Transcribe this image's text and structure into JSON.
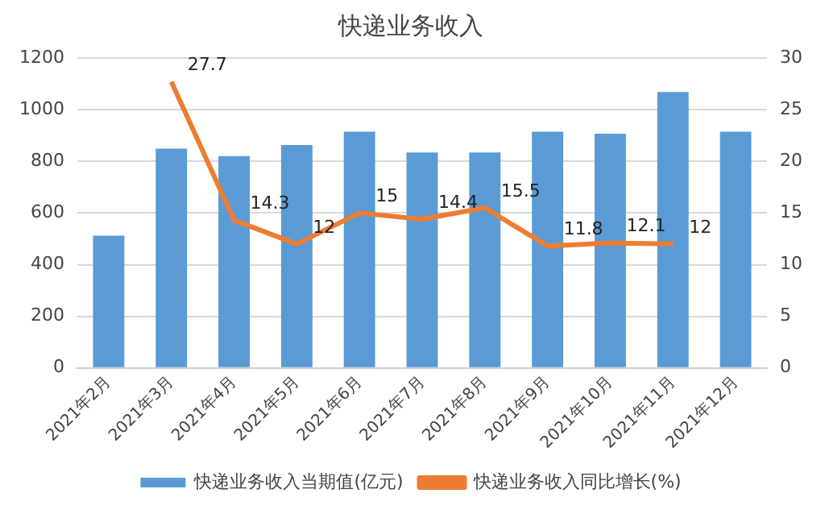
{
  "chart_data": {
    "type": "bar",
    "title": "快递业务收入",
    "categories": [
      "2021年2月",
      "2021年3月",
      "2021年4月",
      "2021年5月",
      "2021年6月",
      "2021年7月",
      "2021年8月",
      "2021年9月",
      "2021年10月",
      "2021年11月",
      "2021年12月"
    ],
    "series": [
      {
        "name": "快递业务收入当期值(亿元)",
        "color": "#5b9bd5",
        "values": [
          512,
          849,
          820,
          863,
          915,
          834,
          834,
          915,
          907,
          1068,
          915
        ]
      },
      {
        "name": "快递业务收入同比增长(%)",
        "color": "#ed7d31",
        "type": "line",
        "axis": "y2",
        "data_labels": true,
        "values": [
          null,
          27.7,
          14.3,
          12,
          15,
          14.4,
          15.5,
          11.8,
          12.1,
          12,
          null
        ]
      }
    ],
    "ylim": [
      0,
      1200
    ],
    "yticks": [
      0,
      200,
      400,
      600,
      800,
      1000,
      1200
    ],
    "y2lim": [
      0,
      30
    ],
    "y2ticks": [
      0,
      5,
      10,
      15,
      20,
      25,
      30
    ],
    "grid": "y",
    "legend": "bottom",
    "marker": "none"
  }
}
